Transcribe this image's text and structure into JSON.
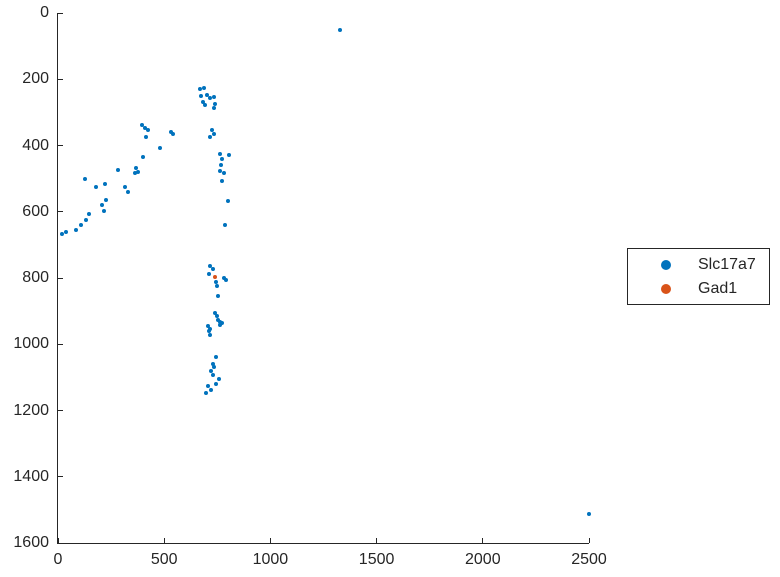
{
  "figure": {
    "background": "#ffffff",
    "axis_color": "#262626"
  },
  "chart_data": {
    "type": "scatter",
    "title": "",
    "xlabel": "",
    "ylabel": "",
    "xlim": [
      0,
      2500
    ],
    "ylim": [
      0,
      1600
    ],
    "y_axis_reversed": true,
    "grid": false,
    "box": false,
    "legend_position": "outside-right",
    "x_ticks": [
      0,
      500,
      1000,
      1500,
      2000,
      2500
    ],
    "y_ticks": [
      0,
      200,
      400,
      600,
      800,
      1000,
      1200,
      1400,
      1600
    ],
    "series": [
      {
        "name": "Slc17a7",
        "color": "#0072BD",
        "points": [
          [
            1330,
            51
          ],
          [
            670,
            229
          ],
          [
            689,
            226
          ],
          [
            675,
            251
          ],
          [
            703,
            248
          ],
          [
            717,
            257
          ],
          [
            736,
            254
          ],
          [
            684,
            269
          ],
          [
            693,
            278
          ],
          [
            741,
            275
          ],
          [
            736,
            287
          ],
          [
            726,
            353
          ],
          [
            736,
            365
          ],
          [
            717,
            374
          ],
          [
            764,
            426
          ],
          [
            807,
            429
          ],
          [
            774,
            441
          ],
          [
            769,
            459
          ],
          [
            764,
            477
          ],
          [
            783,
            483
          ],
          [
            774,
            507
          ],
          [
            802,
            568
          ],
          [
            788,
            640
          ],
          [
            396,
            338
          ],
          [
            410,
            347
          ],
          [
            425,
            353
          ],
          [
            415,
            374
          ],
          [
            533,
            359
          ],
          [
            542,
            365
          ],
          [
            481,
            408
          ],
          [
            401,
            435
          ],
          [
            368,
            468
          ],
          [
            377,
            480
          ],
          [
            363,
            483
          ],
          [
            283,
            474
          ],
          [
            316,
            525
          ],
          [
            330,
            540
          ],
          [
            222,
            516
          ],
          [
            179,
            525
          ],
          [
            127,
            501
          ],
          [
            226,
            565
          ],
          [
            208,
            580
          ],
          [
            217,
            598
          ],
          [
            146,
            607
          ],
          [
            132,
            625
          ],
          [
            108,
            640
          ],
          [
            85,
            655
          ],
          [
            38,
            661
          ],
          [
            19,
            667
          ],
          [
            717,
            764
          ],
          [
            731,
            773
          ],
          [
            712,
            788
          ],
          [
            783,
            800
          ],
          [
            792,
            806
          ],
          [
            745,
            812
          ],
          [
            750,
            824
          ],
          [
            755,
            854
          ],
          [
            741,
            906
          ],
          [
            750,
            915
          ],
          [
            755,
            927
          ],
          [
            764,
            933
          ],
          [
            774,
            936
          ],
          [
            764,
            942
          ],
          [
            708,
            945
          ],
          [
            717,
            954
          ],
          [
            712,
            960
          ],
          [
            717,
            972
          ],
          [
            745,
            1039
          ],
          [
            731,
            1060
          ],
          [
            736,
            1069
          ],
          [
            722,
            1081
          ],
          [
            731,
            1093
          ],
          [
            759,
            1105
          ],
          [
            745,
            1120
          ],
          [
            708,
            1126
          ],
          [
            722,
            1138
          ],
          [
            698,
            1147
          ],
          [
            2500,
            1513
          ]
        ]
      },
      {
        "name": "Gad1",
        "color": "#D95319",
        "points": [
          [
            741,
            797
          ]
        ]
      }
    ]
  },
  "legend": {
    "items": [
      {
        "label": "Slc17a7",
        "color": "#0072BD"
      },
      {
        "label": "Gad1",
        "color": "#D95319"
      }
    ]
  }
}
